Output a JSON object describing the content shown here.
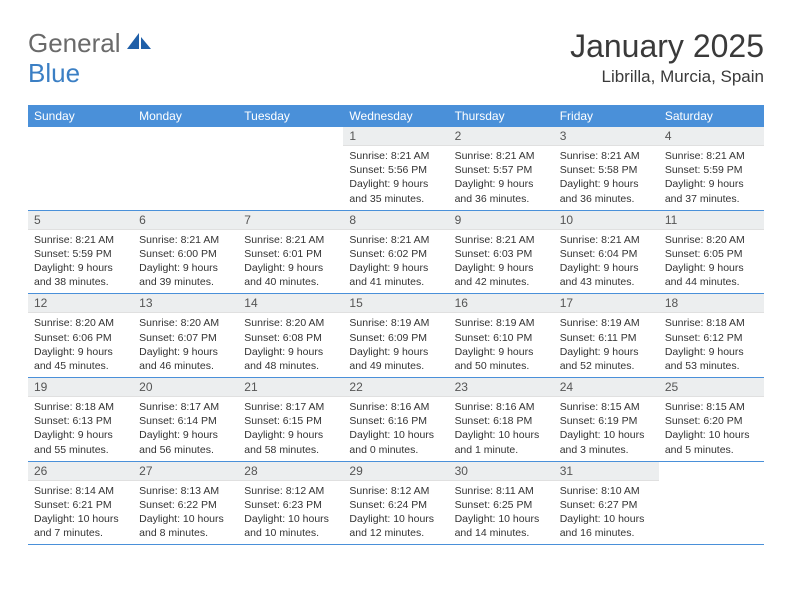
{
  "logo": {
    "text1": "General",
    "text2": "Blue"
  },
  "title": "January 2025",
  "location": "Librilla, Murcia, Spain",
  "colors": {
    "header_bg": "#4a90d9",
    "header_text": "#ffffff",
    "daynum_bg": "#eceeef",
    "text": "#333333",
    "row_border": "#4a90d9",
    "logo_gray": "#6a6a6a",
    "logo_blue": "#3b7fc4"
  },
  "weekdays": [
    "Sunday",
    "Monday",
    "Tuesday",
    "Wednesday",
    "Thursday",
    "Friday",
    "Saturday"
  ],
  "layout": {
    "first_weekday_index": 3,
    "days_in_month": 31
  },
  "days": {
    "1": {
      "sunrise": "8:21 AM",
      "sunset": "5:56 PM",
      "daylight": "9 hours and 35 minutes."
    },
    "2": {
      "sunrise": "8:21 AM",
      "sunset": "5:57 PM",
      "daylight": "9 hours and 36 minutes."
    },
    "3": {
      "sunrise": "8:21 AM",
      "sunset": "5:58 PM",
      "daylight": "9 hours and 36 minutes."
    },
    "4": {
      "sunrise": "8:21 AM",
      "sunset": "5:59 PM",
      "daylight": "9 hours and 37 minutes."
    },
    "5": {
      "sunrise": "8:21 AM",
      "sunset": "5:59 PM",
      "daylight": "9 hours and 38 minutes."
    },
    "6": {
      "sunrise": "8:21 AM",
      "sunset": "6:00 PM",
      "daylight": "9 hours and 39 minutes."
    },
    "7": {
      "sunrise": "8:21 AM",
      "sunset": "6:01 PM",
      "daylight": "9 hours and 40 minutes."
    },
    "8": {
      "sunrise": "8:21 AM",
      "sunset": "6:02 PM",
      "daylight": "9 hours and 41 minutes."
    },
    "9": {
      "sunrise": "8:21 AM",
      "sunset": "6:03 PM",
      "daylight": "9 hours and 42 minutes."
    },
    "10": {
      "sunrise": "8:21 AM",
      "sunset": "6:04 PM",
      "daylight": "9 hours and 43 minutes."
    },
    "11": {
      "sunrise": "8:20 AM",
      "sunset": "6:05 PM",
      "daylight": "9 hours and 44 minutes."
    },
    "12": {
      "sunrise": "8:20 AM",
      "sunset": "6:06 PM",
      "daylight": "9 hours and 45 minutes."
    },
    "13": {
      "sunrise": "8:20 AM",
      "sunset": "6:07 PM",
      "daylight": "9 hours and 46 minutes."
    },
    "14": {
      "sunrise": "8:20 AM",
      "sunset": "6:08 PM",
      "daylight": "9 hours and 48 minutes."
    },
    "15": {
      "sunrise": "8:19 AM",
      "sunset": "6:09 PM",
      "daylight": "9 hours and 49 minutes."
    },
    "16": {
      "sunrise": "8:19 AM",
      "sunset": "6:10 PM",
      "daylight": "9 hours and 50 minutes."
    },
    "17": {
      "sunrise": "8:19 AM",
      "sunset": "6:11 PM",
      "daylight": "9 hours and 52 minutes."
    },
    "18": {
      "sunrise": "8:18 AM",
      "sunset": "6:12 PM",
      "daylight": "9 hours and 53 minutes."
    },
    "19": {
      "sunrise": "8:18 AM",
      "sunset": "6:13 PM",
      "daylight": "9 hours and 55 minutes."
    },
    "20": {
      "sunrise": "8:17 AM",
      "sunset": "6:14 PM",
      "daylight": "9 hours and 56 minutes."
    },
    "21": {
      "sunrise": "8:17 AM",
      "sunset": "6:15 PM",
      "daylight": "9 hours and 58 minutes."
    },
    "22": {
      "sunrise": "8:16 AM",
      "sunset": "6:16 PM",
      "daylight": "10 hours and 0 minutes."
    },
    "23": {
      "sunrise": "8:16 AM",
      "sunset": "6:18 PM",
      "daylight": "10 hours and 1 minute."
    },
    "24": {
      "sunrise": "8:15 AM",
      "sunset": "6:19 PM",
      "daylight": "10 hours and 3 minutes."
    },
    "25": {
      "sunrise": "8:15 AM",
      "sunset": "6:20 PM",
      "daylight": "10 hours and 5 minutes."
    },
    "26": {
      "sunrise": "8:14 AM",
      "sunset": "6:21 PM",
      "daylight": "10 hours and 7 minutes."
    },
    "27": {
      "sunrise": "8:13 AM",
      "sunset": "6:22 PM",
      "daylight": "10 hours and 8 minutes."
    },
    "28": {
      "sunrise": "8:12 AM",
      "sunset": "6:23 PM",
      "daylight": "10 hours and 10 minutes."
    },
    "29": {
      "sunrise": "8:12 AM",
      "sunset": "6:24 PM",
      "daylight": "10 hours and 12 minutes."
    },
    "30": {
      "sunrise": "8:11 AM",
      "sunset": "6:25 PM",
      "daylight": "10 hours and 14 minutes."
    },
    "31": {
      "sunrise": "8:10 AM",
      "sunset": "6:27 PM",
      "daylight": "10 hours and 16 minutes."
    }
  },
  "labels": {
    "sunrise": "Sunrise:",
    "sunset": "Sunset:",
    "daylight": "Daylight:"
  }
}
